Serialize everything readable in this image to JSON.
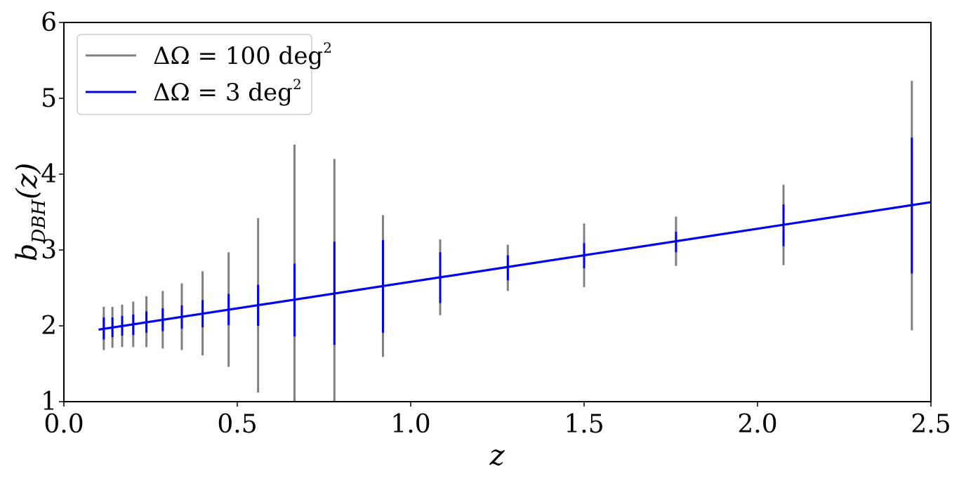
{
  "chart_data": {
    "type": "line",
    "xlabel": "z",
    "ylabel": "b_{DBH}(z)",
    "ylabel_main": "b",
    "ylabel_sub": "DBH",
    "ylabel_tail": "(z)",
    "xlim": [
      0.0,
      2.5
    ],
    "ylim": [
      1,
      6
    ],
    "x_ticks": [
      0.0,
      0.5,
      1.0,
      1.5,
      2.0,
      2.5
    ],
    "x_tick_labels": [
      "0.0",
      "0.5",
      "1.0",
      "1.5",
      "2.0",
      "2.5"
    ],
    "y_ticks": [
      1,
      2,
      3,
      4,
      5,
      6
    ],
    "y_tick_labels": [
      "1",
      "2",
      "3",
      "4",
      "5",
      "6"
    ],
    "grid": false,
    "legend_position": "top-left",
    "line": {
      "x": [
        0.1,
        2.5
      ],
      "y": [
        1.95,
        3.63
      ],
      "color": "#0000ee"
    },
    "series": [
      {
        "name": "ΔΩ = 100 deg²",
        "legend_main": "ΔΩ = 100 deg",
        "legend_sup": "2",
        "color": "#808080",
        "x": [
          0.115,
          0.14,
          0.168,
          0.2,
          0.238,
          0.285,
          0.34,
          0.4,
          0.475,
          0.56,
          0.665,
          0.78,
          0.92,
          1.085,
          1.28,
          1.5,
          1.765,
          2.075,
          2.445
        ],
        "y": [
          1.96,
          1.98,
          2.0,
          2.02,
          2.05,
          2.08,
          2.12,
          2.16,
          2.21,
          2.28,
          2.35,
          2.43,
          2.53,
          2.64,
          2.77,
          2.92,
          3.1,
          3.32,
          3.59
        ],
        "err_low": [
          1.68,
          1.71,
          1.72,
          1.72,
          1.72,
          1.7,
          1.68,
          1.61,
          1.46,
          1.12,
          1.0,
          1.0,
          1.59,
          2.14,
          2.46,
          2.51,
          2.79,
          2.8,
          1.94
        ],
        "err_high": [
          2.25,
          2.25,
          2.28,
          2.32,
          2.39,
          2.46,
          2.56,
          2.72,
          2.97,
          3.42,
          4.39,
          4.2,
          3.46,
          3.14,
          3.07,
          3.35,
          3.44,
          3.86,
          5.23
        ]
      },
      {
        "name": "ΔΩ = 3 deg²",
        "legend_main": "ΔΩ = 3 deg",
        "legend_sup": "2",
        "color": "#0000ee",
        "x": [
          0.115,
          0.14,
          0.168,
          0.2,
          0.238,
          0.285,
          0.34,
          0.4,
          0.475,
          0.56,
          0.665,
          0.78,
          0.92,
          1.085,
          1.28,
          1.5,
          1.765,
          2.075,
          2.445
        ],
        "y": [
          1.96,
          1.98,
          2.0,
          2.02,
          2.05,
          2.08,
          2.12,
          2.16,
          2.21,
          2.28,
          2.35,
          2.43,
          2.53,
          2.64,
          2.77,
          2.92,
          3.1,
          3.32,
          3.59
        ],
        "err_low": [
          1.82,
          1.85,
          1.87,
          1.88,
          1.91,
          1.93,
          1.96,
          1.98,
          2.01,
          2.0,
          1.86,
          1.75,
          1.91,
          2.3,
          2.6,
          2.76,
          2.97,
          3.05,
          2.69
        ],
        "err_high": [
          2.11,
          2.11,
          2.13,
          2.15,
          2.19,
          2.23,
          2.27,
          2.34,
          2.42,
          2.54,
          2.82,
          3.11,
          3.13,
          2.97,
          2.93,
          3.09,
          3.24,
          3.6,
          4.48
        ]
      }
    ]
  }
}
